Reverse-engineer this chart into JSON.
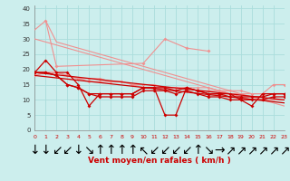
{
  "background_color": "#cceeed",
  "grid_color": "#aadddc",
  "xlabel": "Vent moyen/en rafales ( km/h )",
  "ylabel_ticks": [
    0,
    5,
    10,
    15,
    20,
    25,
    30,
    35,
    40
  ],
  "x_ticks": [
    0,
    1,
    2,
    3,
    4,
    5,
    6,
    7,
    8,
    9,
    10,
    11,
    12,
    13,
    14,
    15,
    16,
    17,
    18,
    19,
    20,
    21,
    22,
    23
  ],
  "xlim": [
    0,
    23
  ],
  "ylim": [
    0,
    41
  ],
  "light_pink": "#f09090",
  "dark_red": "#cc0000",
  "arrow_symbols": [
    "↓",
    "↓",
    "↙",
    "↙",
    "↓",
    "↘",
    "↑",
    "↑",
    "↑",
    "↑",
    "↖",
    "↙",
    "↙",
    "↙",
    "↙",
    "↑",
    "↘",
    "→",
    "↗",
    "↗",
    "↗",
    "↗",
    "↗",
    "↗"
  ],
  "lines": [
    {
      "x": [
        0,
        1,
        2,
        3,
        4,
        5,
        6,
        7,
        8,
        9,
        10,
        11,
        12,
        13,
        14,
        15,
        16,
        17,
        18,
        19,
        20,
        21,
        22,
        23
      ],
      "y": [
        33,
        36,
        29,
        28,
        27,
        26,
        25,
        24,
        23,
        22,
        21,
        20,
        19,
        18,
        17,
        16,
        15,
        14,
        13,
        12,
        11,
        10,
        9,
        8
      ],
      "color": "#f09090",
      "lw": 0.8,
      "marker": null,
      "ms": 0
    },
    {
      "x": [
        0,
        1,
        2,
        3,
        4,
        5,
        6,
        7,
        8,
        9,
        10,
        11,
        12,
        13,
        14,
        15,
        16,
        17,
        18,
        19,
        20,
        21,
        22,
        23
      ],
      "y": [
        30,
        29,
        28,
        27,
        26,
        25,
        24,
        23,
        22,
        21,
        20,
        19,
        18,
        17,
        16,
        15,
        14,
        13,
        12,
        11,
        10,
        10,
        10,
        10
      ],
      "color": "#f09090",
      "lw": 0.8,
      "marker": null,
      "ms": 0
    },
    {
      "x": [
        0,
        1,
        2,
        3,
        4,
        5,
        6,
        7,
        8,
        9,
        10,
        11,
        12,
        13,
        14,
        15,
        16,
        17,
        18,
        19,
        20,
        21,
        22,
        23
      ],
      "y": [
        18,
        19,
        19,
        18,
        17,
        17,
        17,
        16,
        16,
        15,
        15,
        15,
        14,
        14,
        14,
        14,
        14,
        13,
        13,
        13,
        12,
        12,
        15,
        15
      ],
      "color": "#f09090",
      "lw": 0.8,
      "marker": "D",
      "ms": 1.8
    },
    {
      "x": [
        0,
        1,
        2,
        3,
        4,
        5,
        6,
        7,
        8,
        9,
        10,
        11,
        12,
        13,
        14,
        15,
        16,
        17,
        18,
        19,
        20,
        21,
        22,
        23
      ],
      "y": [
        18,
        19,
        19,
        18,
        17,
        16,
        16,
        16,
        16,
        15,
        14,
        14,
        14,
        14,
        14,
        13,
        13,
        13,
        12,
        12,
        12,
        12,
        12,
        12
      ],
      "color": "#f09090",
      "lw": 0.8,
      "marker": "D",
      "ms": 1.8
    },
    {
      "x": [
        1,
        2,
        10,
        12,
        14,
        16
      ],
      "y": [
        36,
        21,
        22,
        30,
        27,
        26
      ],
      "color": "#f09090",
      "lw": 0.8,
      "marker": "D",
      "ms": 2.0
    },
    {
      "x": [
        0,
        1,
        2,
        3,
        4,
        5,
        6,
        7,
        8,
        9,
        10,
        11,
        12,
        13,
        14,
        15,
        16,
        17,
        18,
        19,
        20,
        21,
        22,
        23
      ],
      "y": [
        19,
        23,
        19,
        19,
        15,
        8,
        12,
        12,
        12,
        12,
        14,
        14,
        5,
        5,
        14,
        13,
        12,
        12,
        12,
        10,
        8,
        12,
        12,
        12
      ],
      "color": "#cc0000",
      "lw": 0.9,
      "marker": "D",
      "ms": 2.0
    },
    {
      "x": [
        0,
        1,
        2,
        3,
        4,
        5,
        6,
        7,
        8,
        9,
        10,
        11,
        12,
        13,
        14,
        15,
        16,
        17,
        18,
        19,
        20,
        21,
        22,
        23
      ],
      "y": [
        19,
        19,
        18,
        15,
        14,
        12,
        12,
        12,
        12,
        12,
        14,
        14,
        14,
        13,
        14,
        13,
        12,
        12,
        11,
        11,
        11,
        11,
        12,
        12
      ],
      "color": "#cc0000",
      "lw": 0.9,
      "marker": "D",
      "ms": 2.0
    },
    {
      "x": [
        0,
        1,
        2,
        3,
        4,
        5,
        6,
        7,
        8,
        9,
        10,
        11,
        12,
        13,
        14,
        15,
        16,
        17,
        18,
        19,
        20,
        21,
        22,
        23
      ],
      "y": [
        19,
        19,
        18,
        15,
        14,
        12,
        11,
        11,
        11,
        11,
        13,
        13,
        13,
        12,
        13,
        12,
        11,
        11,
        10,
        10,
        10,
        10,
        11,
        11
      ],
      "color": "#cc0000",
      "lw": 0.9,
      "marker": "D",
      "ms": 2.0
    },
    {
      "x": [
        0,
        23
      ],
      "y": [
        19,
        10
      ],
      "color": "#cc0000",
      "lw": 0.9,
      "marker": null,
      "ms": 0
    },
    {
      "x": [
        0,
        23
      ],
      "y": [
        18,
        9
      ],
      "color": "#cc0000",
      "lw": 0.9,
      "marker": null,
      "ms": 0
    }
  ]
}
